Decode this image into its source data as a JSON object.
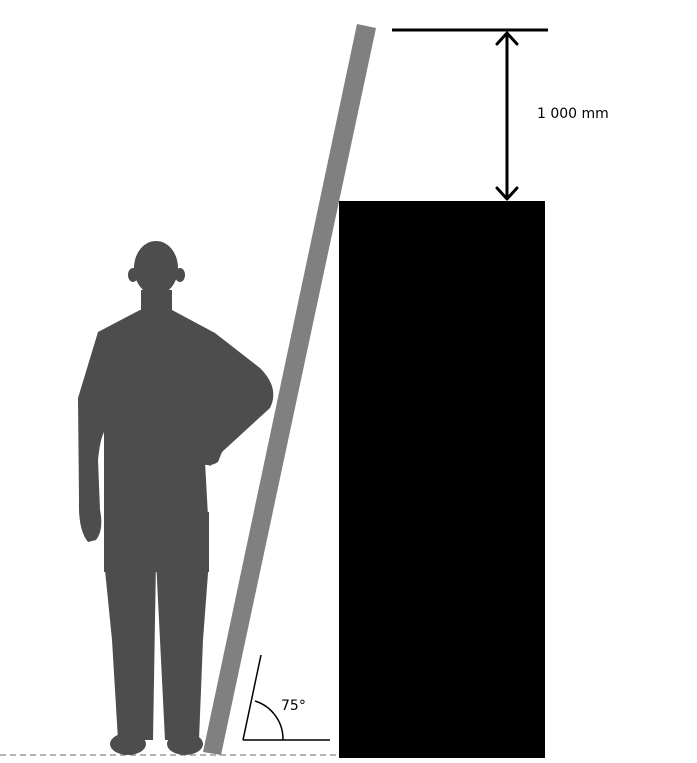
{
  "labels": {
    "height_extension": "1 000 mm",
    "angle": "75°"
  },
  "colors": {
    "background": "#ffffff",
    "person": "#4d4d4d",
    "ladder": "#808080",
    "wall": "#000000",
    "lines": "#000000",
    "ground_dash": "#888888"
  }
}
